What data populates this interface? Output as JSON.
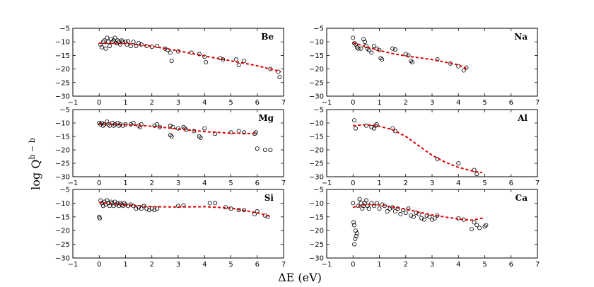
{
  "figure": {
    "ylabel": "log Q",
    "ylabel_sup": "b − b",
    "xlabel": "ΔE (eV)"
  },
  "chart_data": [
    {
      "type": "scatter",
      "element": "Be",
      "xlim": [
        -1,
        7
      ],
      "ylim": [
        -30,
        -5
      ],
      "xticks": [
        -1,
        0,
        1,
        2,
        3,
        4,
        5,
        6,
        7
      ],
      "yticks": [
        -5,
        -10,
        -15,
        -20,
        -25,
        -30
      ],
      "grid": false,
      "points": [
        [
          0.05,
          -11
        ],
        [
          0.1,
          -12
        ],
        [
          0.15,
          -10
        ],
        [
          0.2,
          -9.5
        ],
        [
          0.25,
          -12.5
        ],
        [
          0.3,
          -8.5
        ],
        [
          0.35,
          -10
        ],
        [
          0.4,
          -11.5
        ],
        [
          0.45,
          -9
        ],
        [
          0.5,
          -10
        ],
        [
          0.55,
          -9.5
        ],
        [
          0.6,
          -8.5
        ],
        [
          0.65,
          -10.5
        ],
        [
          0.7,
          -9.5
        ],
        [
          0.75,
          -10
        ],
        [
          0.8,
          -11
        ],
        [
          0.85,
          -9.5
        ],
        [
          0.9,
          -10
        ],
        [
          1.0,
          -10
        ],
        [
          1.05,
          -11
        ],
        [
          1.1,
          -9.8
        ],
        [
          1.2,
          -11.5
        ],
        [
          1.3,
          -10
        ],
        [
          1.4,
          -11.5
        ],
        [
          1.5,
          -10.5
        ],
        [
          1.6,
          -11
        ],
        [
          1.8,
          -11.5
        ],
        [
          2.0,
          -11.8
        ],
        [
          2.2,
          -11.5
        ],
        [
          2.5,
          -12.5
        ],
        [
          2.6,
          -13
        ],
        [
          2.7,
          -14
        ],
        [
          2.75,
          -17
        ],
        [
          3.0,
          -13.5
        ],
        [
          3.5,
          -14
        ],
        [
          3.8,
          -14.5
        ],
        [
          4.0,
          -15.5
        ],
        [
          4.05,
          -17.5
        ],
        [
          4.6,
          -16
        ],
        [
          4.7,
          -16.5
        ],
        [
          5.2,
          -16.5
        ],
        [
          5.3,
          -18.5
        ],
        [
          5.5,
          -17
        ],
        [
          6.5,
          -20
        ],
        [
          6.8,
          -21
        ],
        [
          6.85,
          -23
        ]
      ],
      "fit": [
        [
          0,
          -10.5
        ],
        [
          1,
          -10.6
        ],
        [
          2,
          -11.6
        ],
        [
          3,
          -13.3
        ],
        [
          4,
          -15.2
        ],
        [
          5,
          -17
        ],
        [
          6,
          -18.8
        ],
        [
          6.9,
          -21
        ]
      ]
    },
    {
      "type": "scatter",
      "element": "Na",
      "xlim": [
        -1,
        7
      ],
      "ylim": [
        -30,
        -5
      ],
      "xticks": [
        -1,
        0,
        1,
        2,
        3,
        4,
        5,
        6,
        7
      ],
      "yticks": [
        -5,
        -10,
        -15,
        -20,
        -25,
        -30
      ],
      "grid": false,
      "points": [
        [
          0.0,
          -8.5
        ],
        [
          0.05,
          -10.5
        ],
        [
          0.1,
          -11
        ],
        [
          0.15,
          -12
        ],
        [
          0.2,
          -12.5
        ],
        [
          0.3,
          -12.5
        ],
        [
          0.4,
          -9
        ],
        [
          0.45,
          -10
        ],
        [
          0.5,
          -11.5
        ],
        [
          0.55,
          -12.5
        ],
        [
          0.6,
          -13
        ],
        [
          0.7,
          -14
        ],
        [
          0.8,
          -11.5
        ],
        [
          0.9,
          -12.5
        ],
        [
          1.0,
          -13
        ],
        [
          1.05,
          -16
        ],
        [
          1.1,
          -16.5
        ],
        [
          1.5,
          -12.5
        ],
        [
          1.6,
          -12.8
        ],
        [
          2.0,
          -14.5
        ],
        [
          2.1,
          -15
        ],
        [
          2.2,
          -17
        ],
        [
          2.25,
          -17.5
        ],
        [
          3.2,
          -16.5
        ],
        [
          3.7,
          -18
        ],
        [
          4.0,
          -19
        ],
        [
          4.2,
          -20.5
        ],
        [
          4.3,
          -19.5
        ]
      ],
      "fit": [
        [
          0,
          -10.3
        ],
        [
          0.5,
          -11.8
        ],
        [
          1,
          -13.2
        ],
        [
          1.5,
          -14.3
        ],
        [
          2,
          -15.2
        ],
        [
          3,
          -16.5
        ],
        [
          4,
          -18.5
        ],
        [
          4.3,
          -19.8
        ]
      ]
    },
    {
      "type": "scatter",
      "element": "Mg",
      "xlim": [
        -1,
        7
      ],
      "ylim": [
        -30,
        -5
      ],
      "xticks": [
        -1,
        0,
        1,
        2,
        3,
        4,
        5,
        6,
        7
      ],
      "yticks": [
        -5,
        -10,
        -15,
        -20,
        -25,
        -30
      ],
      "grid": false,
      "points": [
        [
          0.0,
          -10
        ],
        [
          0.05,
          -10.5
        ],
        [
          0.1,
          -10
        ],
        [
          0.15,
          -11
        ],
        [
          0.2,
          -10.5
        ],
        [
          0.3,
          -9.5
        ],
        [
          0.35,
          -10.5
        ],
        [
          0.4,
          -11
        ],
        [
          0.5,
          -10
        ],
        [
          0.55,
          -11
        ],
        [
          0.6,
          -10.5
        ],
        [
          0.7,
          -10
        ],
        [
          0.75,
          -11
        ],
        [
          0.8,
          -10.5
        ],
        [
          0.9,
          -11
        ],
        [
          1.0,
          -10.5
        ],
        [
          1.2,
          -10.5
        ],
        [
          1.3,
          -10
        ],
        [
          1.5,
          -11
        ],
        [
          1.55,
          -11.5
        ],
        [
          1.6,
          -10.5
        ],
        [
          2.1,
          -11
        ],
        [
          2.2,
          -10.5
        ],
        [
          2.3,
          -11.5
        ],
        [
          2.7,
          -14.5
        ],
        [
          2.75,
          -15
        ],
        [
          2.7,
          -11
        ],
        [
          2.8,
          -11.5
        ],
        [
          3.0,
          -12
        ],
        [
          3.2,
          -11.5
        ],
        [
          3.25,
          -12
        ],
        [
          3.3,
          -12.5
        ],
        [
          3.6,
          -13
        ],
        [
          3.8,
          -15
        ],
        [
          3.85,
          -15.5
        ],
        [
          4.0,
          -12
        ],
        [
          4.4,
          -14
        ],
        [
          5.0,
          -13.5
        ],
        [
          5.3,
          -13
        ],
        [
          5.5,
          -13.5
        ],
        [
          5.9,
          -14
        ],
        [
          5.95,
          -13.5
        ],
        [
          6.0,
          -19.5
        ],
        [
          6.3,
          -20
        ],
        [
          6.5,
          -20
        ]
      ],
      "fit": [
        [
          0,
          -10.3
        ],
        [
          1,
          -10.6
        ],
        [
          2,
          -11.2
        ],
        [
          3,
          -12.2
        ],
        [
          4,
          -13.2
        ],
        [
          5,
          -13.8
        ],
        [
          6,
          -14
        ]
      ]
    },
    {
      "type": "scatter",
      "element": "Al",
      "xlim": [
        -1,
        7
      ],
      "ylim": [
        -30,
        -5
      ],
      "xticks": [
        -1,
        0,
        1,
        2,
        3,
        4,
        5,
        6,
        7
      ],
      "yticks": [
        -5,
        -10,
        -15,
        -20,
        -25,
        -30
      ],
      "grid": false,
      "points": [
        [
          0.05,
          -9
        ],
        [
          0.1,
          -12
        ],
        [
          0.5,
          -11
        ],
        [
          0.7,
          -11.5
        ],
        [
          0.8,
          -12
        ],
        [
          0.85,
          -11
        ],
        [
          0.9,
          -10.5
        ],
        [
          1.5,
          -12
        ],
        [
          1.6,
          -13
        ],
        [
          3.2,
          -23.5
        ],
        [
          4.0,
          -25
        ],
        [
          4.6,
          -27.5
        ],
        [
          4.7,
          -29
        ]
      ],
      "fit": [
        [
          0,
          -11
        ],
        [
          0.5,
          -10.6
        ],
        [
          1,
          -11.2
        ],
        [
          1.5,
          -12.5
        ],
        [
          2,
          -15
        ],
        [
          2.5,
          -18.5
        ],
        [
          3,
          -22
        ],
        [
          3.5,
          -24.6
        ],
        [
          4,
          -26.5
        ],
        [
          4.5,
          -27.8
        ],
        [
          4.9,
          -28.5
        ]
      ]
    },
    {
      "type": "scatter",
      "element": "Si",
      "xlim": [
        -1,
        7
      ],
      "ylim": [
        -30,
        -5
      ],
      "xticks": [
        -1,
        0,
        1,
        2,
        3,
        4,
        5,
        6,
        7
      ],
      "yticks": [
        -5,
        -10,
        -15,
        -20,
        -25,
        -30
      ],
      "grid": false,
      "points": [
        [
          0.0,
          -15
        ],
        [
          0.02,
          -15.5
        ],
        [
          0.05,
          -9
        ],
        [
          0.1,
          -10
        ],
        [
          0.15,
          -11
        ],
        [
          0.2,
          -9.5
        ],
        [
          0.25,
          -10.5
        ],
        [
          0.3,
          -9
        ],
        [
          0.35,
          -10
        ],
        [
          0.4,
          -11
        ],
        [
          0.45,
          -9.5
        ],
        [
          0.5,
          -10
        ],
        [
          0.55,
          -11
        ],
        [
          0.6,
          -9.5
        ],
        [
          0.65,
          -10.5
        ],
        [
          0.7,
          -10
        ],
        [
          0.75,
          -11
        ],
        [
          0.8,
          -10
        ],
        [
          0.85,
          -10.5
        ],
        [
          0.9,
          -11
        ],
        [
          0.95,
          -10
        ],
        [
          1.0,
          -10.5
        ],
        [
          1.1,
          -11
        ],
        [
          1.2,
          -10.5
        ],
        [
          1.3,
          -11
        ],
        [
          1.4,
          -12
        ],
        [
          1.5,
          -11.5
        ],
        [
          1.6,
          -12
        ],
        [
          1.7,
          -11
        ],
        [
          1.8,
          -12
        ],
        [
          1.9,
          -12.5
        ],
        [
          2.0,
          -12
        ],
        [
          2.1,
          -12.5
        ],
        [
          2.2,
          -12
        ],
        [
          3.0,
          -11
        ],
        [
          3.2,
          -10.8
        ],
        [
          4.2,
          -10
        ],
        [
          4.4,
          -10
        ],
        [
          4.8,
          -11.5
        ],
        [
          5.0,
          -12
        ],
        [
          5.3,
          -12.5
        ],
        [
          5.5,
          -12.5
        ],
        [
          5.9,
          -14
        ],
        [
          6.0,
          -13
        ],
        [
          6.3,
          -14.5
        ],
        [
          6.4,
          -15
        ]
      ],
      "fit": [
        [
          0,
          -9.8
        ],
        [
          1,
          -10.6
        ],
        [
          2,
          -11.3
        ],
        [
          3,
          -11.4
        ],
        [
          4,
          -11.3
        ],
        [
          5,
          -11.8
        ],
        [
          6,
          -13.5
        ],
        [
          6.5,
          -14.8
        ]
      ]
    },
    {
      "type": "scatter",
      "element": "Ca",
      "xlim": [
        -1,
        7
      ],
      "ylim": [
        -30,
        -5
      ],
      "xticks": [
        -1,
        0,
        1,
        2,
        3,
        4,
        5,
        6,
        7
      ],
      "yticks": [
        -5,
        -10,
        -15,
        -20,
        -25,
        -30
      ],
      "grid": false,
      "points": [
        [
          0.0,
          -10
        ],
        [
          0.02,
          -17
        ],
        [
          0.04,
          -18
        ],
        [
          0.05,
          -25
        ],
        [
          0.08,
          -23
        ],
        [
          0.1,
          -20
        ],
        [
          0.12,
          -22
        ],
        [
          0.15,
          -21
        ],
        [
          0.2,
          -11
        ],
        [
          0.25,
          -8.5
        ],
        [
          0.3,
          -10
        ],
        [
          0.35,
          -12
        ],
        [
          0.4,
          -11
        ],
        [
          0.45,
          -10
        ],
        [
          0.5,
          -9
        ],
        [
          0.55,
          -11
        ],
        [
          0.6,
          -12
        ],
        [
          0.7,
          -10
        ],
        [
          0.8,
          -11
        ],
        [
          0.9,
          -10
        ],
        [
          1.0,
          -12
        ],
        [
          1.1,
          -10.5
        ],
        [
          1.2,
          -11
        ],
        [
          1.3,
          -13
        ],
        [
          1.4,
          -12
        ],
        [
          1.5,
          -11.5
        ],
        [
          1.6,
          -13
        ],
        [
          1.7,
          -12
        ],
        [
          1.8,
          -14
        ],
        [
          1.9,
          -12.5
        ],
        [
          2.0,
          -13.5
        ],
        [
          2.1,
          -12
        ],
        [
          2.2,
          -14.5
        ],
        [
          2.3,
          -15
        ],
        [
          2.4,
          -13.5
        ],
        [
          2.5,
          -14
        ],
        [
          2.6,
          -15.5
        ],
        [
          2.7,
          -16
        ],
        [
          2.8,
          -14.5
        ],
        [
          2.9,
          -15
        ],
        [
          3.0,
          -16
        ],
        [
          3.1,
          -15.5
        ],
        [
          3.2,
          -14.5
        ],
        [
          4.0,
          -15.5
        ],
        [
          4.2,
          -16
        ],
        [
          4.5,
          -19.5
        ],
        [
          4.6,
          -17
        ],
        [
          4.7,
          -18
        ],
        [
          4.8,
          -19
        ],
        [
          5.0,
          -18.5
        ],
        [
          5.05,
          -18
        ]
      ],
      "fit": [
        [
          0,
          -11.5
        ],
        [
          0.5,
          -10.5
        ],
        [
          1,
          -10.6
        ],
        [
          2,
          -12.2
        ],
        [
          3,
          -14.3
        ],
        [
          4,
          -15.8
        ],
        [
          4.5,
          -16.2
        ],
        [
          5,
          -15.3
        ]
      ]
    }
  ]
}
